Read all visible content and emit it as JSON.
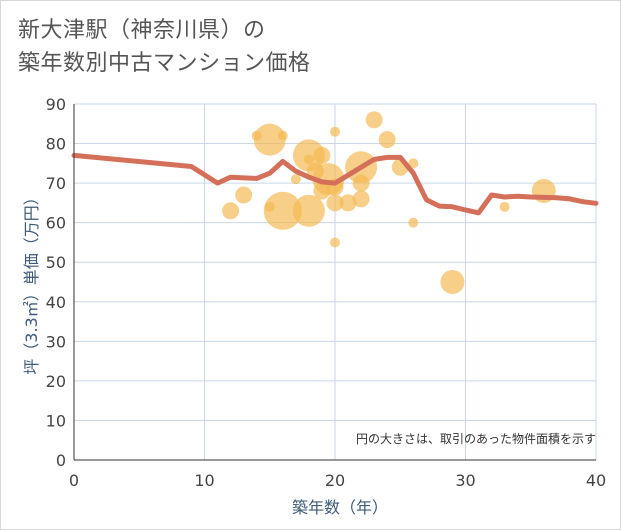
{
  "header": {
    "title_line1": "新大津駅（神奈川県）の",
    "title_line2": "築年数別中古マンション価格"
  },
  "colors": {
    "bubble": "#f3b84f",
    "line": "#d4705a",
    "grid": "#c9d6e6"
  },
  "chart_data": {
    "type": "scatter",
    "title": "新大津駅（神奈川県）の築年数別中古マンション価格",
    "xlabel": "築年数（年）",
    "ylabel": "坪（3.3㎡）単価（万円）",
    "xlim": [
      0,
      40
    ],
    "ylim": [
      0,
      90
    ],
    "x_ticks": [
      0,
      10,
      20,
      30,
      40
    ],
    "y_ticks": [
      0,
      10,
      20,
      30,
      40,
      50,
      60,
      70,
      80,
      90
    ],
    "note": "円の大きさは、取引のあった物件面積を示す",
    "bubbles": [
      {
        "x": 12,
        "y": 63,
        "size": 2
      },
      {
        "x": 13,
        "y": 67,
        "size": 2
      },
      {
        "x": 14,
        "y": 82,
        "size": 1
      },
      {
        "x": 15,
        "y": 81,
        "size": 4
      },
      {
        "x": 15,
        "y": 64,
        "size": 1
      },
      {
        "x": 16,
        "y": 82,
        "size": 1
      },
      {
        "x": 16,
        "y": 63,
        "size": 5
      },
      {
        "x": 17,
        "y": 71,
        "size": 1
      },
      {
        "x": 18,
        "y": 76,
        "size": 1
      },
      {
        "x": 18,
        "y": 77,
        "size": 4
      },
      {
        "x": 18,
        "y": 63,
        "size": 4
      },
      {
        "x": 18.5,
        "y": 73,
        "size": 2
      },
      {
        "x": 19,
        "y": 77,
        "size": 2
      },
      {
        "x": 19,
        "y": 68,
        "size": 2
      },
      {
        "x": 19.5,
        "y": 71,
        "size": 4
      },
      {
        "x": 20,
        "y": 83,
        "size": 1
      },
      {
        "x": 20,
        "y": 69,
        "size": 2
      },
      {
        "x": 20,
        "y": 65,
        "size": 2
      },
      {
        "x": 20,
        "y": 55,
        "size": 1
      },
      {
        "x": 21,
        "y": 65,
        "size": 2
      },
      {
        "x": 22,
        "y": 74,
        "size": 4
      },
      {
        "x": 22,
        "y": 70,
        "size": 2
      },
      {
        "x": 22,
        "y": 66,
        "size": 2
      },
      {
        "x": 23,
        "y": 86,
        "size": 2
      },
      {
        "x": 24,
        "y": 81,
        "size": 2
      },
      {
        "x": 25,
        "y": 74,
        "size": 2
      },
      {
        "x": 26,
        "y": 75,
        "size": 1
      },
      {
        "x": 26,
        "y": 60,
        "size": 1
      },
      {
        "x": 29,
        "y": 45,
        "size": 3
      },
      {
        "x": 33,
        "y": 64,
        "size": 1
      },
      {
        "x": 36,
        "y": 68,
        "size": 3
      }
    ],
    "trend_line": {
      "x": [
        0,
        9,
        11,
        12,
        14,
        15,
        16,
        17,
        18,
        19,
        20,
        21,
        22,
        23,
        24,
        25,
        26,
        27,
        28,
        29,
        30,
        31,
        32,
        33,
        34,
        35,
        36,
        37,
        38,
        39,
        40
      ],
      "y": [
        77,
        74.2,
        70,
        71.5,
        71.2,
        72.5,
        75.5,
        73,
        71.5,
        70.3,
        70,
        72,
        74,
        76,
        76.5,
        76.5,
        72.5,
        65.8,
        64.2,
        64,
        63.2,
        62.5,
        67,
        66.5,
        66.7,
        66.5,
        66.4,
        66.3,
        66,
        65.3,
        64.9
      ]
    }
  }
}
